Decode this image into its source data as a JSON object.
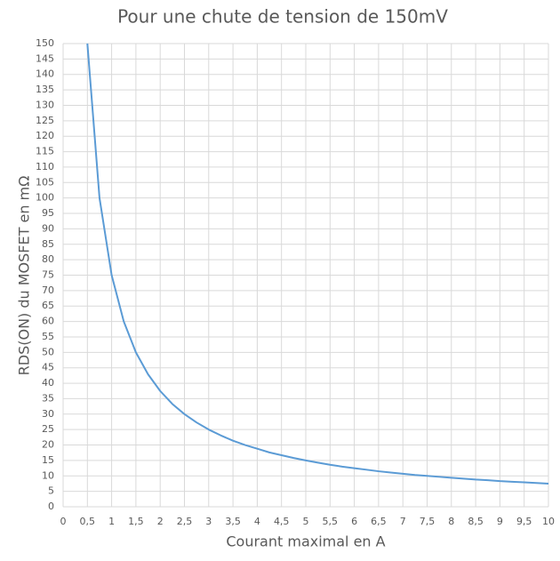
{
  "chart_data": {
    "type": "line",
    "title": "Pour une chute de tension de 150mV",
    "x_label": "Courant maximal en A",
    "y_label": "RDS(ON) du MOSFET en mΩ",
    "x": [
      0.5,
      0.75,
      1,
      1.25,
      1.5,
      1.75,
      2,
      2.25,
      2.5,
      2.75,
      3,
      3.25,
      3.5,
      3.75,
      4,
      4.25,
      4.5,
      4.75,
      5,
      5.25,
      5.5,
      5.75,
      6,
      6.25,
      6.5,
      6.75,
      7,
      7.25,
      7.5,
      7.75,
      8,
      8.25,
      8.5,
      8.75,
      9,
      9.25,
      9.5,
      9.75,
      10
    ],
    "series": [
      {
        "color": "#5b9bd5",
        "values": [
          150,
          100,
          75,
          60,
          50,
          42.9,
          37.5,
          33.3,
          30,
          27.3,
          25,
          23.1,
          21.4,
          20,
          18.8,
          17.6,
          16.7,
          15.8,
          15,
          14.3,
          13.6,
          13,
          12.5,
          12,
          11.5,
          11.1,
          10.7,
          10.3,
          10,
          9.7,
          9.4,
          9.1,
          8.8,
          8.6,
          8.3,
          8.1,
          7.9,
          7.7,
          7.5
        ]
      }
    ],
    "xlim": [
      0,
      10
    ],
    "ylim": [
      0,
      150
    ],
    "xticks": [
      0,
      {
        "value": 0.5,
        "label": "0,5"
      },
      1,
      {
        "value": 1.5,
        "label": "1,5"
      },
      2,
      {
        "value": 2.5,
        "label": "2,5"
      },
      3,
      {
        "value": 3.5,
        "label": "3,5"
      },
      4,
      {
        "value": 4.5,
        "label": "4,5"
      },
      5,
      {
        "value": 5.5,
        "label": "5,5"
      },
      6,
      {
        "value": 6.5,
        "label": "6,5"
      },
      7,
      {
        "value": 7.5,
        "label": "7,5"
      },
      8,
      {
        "value": 8.5,
        "label": "8,5"
      },
      9,
      {
        "value": 9.5,
        "label": "9,5"
      },
      10
    ],
    "yticks": [
      0,
      5,
      10,
      15,
      20,
      25,
      30,
      35,
      40,
      45,
      50,
      55,
      60,
      65,
      70,
      75,
      80,
      85,
      90,
      95,
      100,
      105,
      110,
      115,
      120,
      125,
      130,
      135,
      140,
      145,
      150
    ],
    "grid": true
  }
}
